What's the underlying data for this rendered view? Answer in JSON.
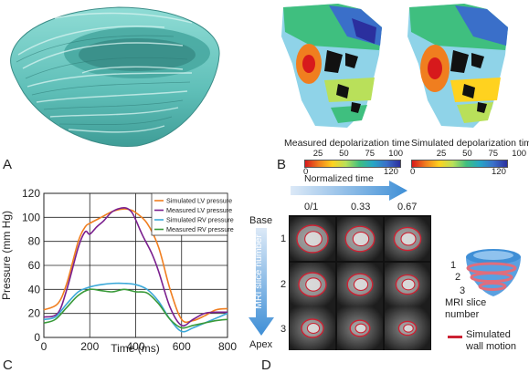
{
  "panels": {
    "a": "A",
    "b": "B",
    "c": "C",
    "d": "D"
  },
  "colors": {
    "fiber": "#5fbfb8",
    "lv_sim": "#f07e1f",
    "lv_meas": "#7a1f8e",
    "rv_sim": "#3ba8d8",
    "rv_meas": "#3a9a3a",
    "arrow": "#3f8fd6",
    "motion": "#cc2233"
  },
  "panel_b": {
    "measured_title": "Measured depolarization time",
    "simulated_title": "Simulated depolarization time",
    "ticks_top": [
      "25",
      "50",
      "75",
      "100"
    ],
    "tick_min": "0",
    "tick_max": "120",
    "colormap": [
      "#d7191c",
      "#f07e1f",
      "#ffd21f",
      "#b9e05a",
      "#3fbf7f",
      "#27a6c5",
      "#3a6fc9",
      "#2b2f9e"
    ]
  },
  "chart_data": {
    "type": "line",
    "xlabel": "Time (ms)",
    "ylabel": "Pressure (mm Hg)",
    "xlim": [
      0,
      800
    ],
    "ylim": [
      0,
      120
    ],
    "xticks": [
      "0",
      "200",
      "400",
      "600",
      "800"
    ],
    "yticks": [
      "0",
      "20",
      "40",
      "60",
      "80",
      "100",
      "120"
    ],
    "grid": true,
    "legend_position": "top-right",
    "series": [
      {
        "name": "Simulated LV pressure",
        "color": "#f07e1f",
        "x": [
          0,
          60,
          100,
          150,
          180,
          200,
          250,
          300,
          350,
          380,
          400,
          450,
          500,
          550,
          600,
          650,
          700,
          750,
          800
        ],
        "y": [
          23,
          28,
          45,
          80,
          92,
          95,
          100,
          105,
          107,
          106,
          104,
          95,
          75,
          40,
          15,
          14,
          18,
          23,
          24
        ]
      },
      {
        "name": "Measured LV pressure",
        "color": "#7a1f8e",
        "x": [
          0,
          60,
          100,
          150,
          180,
          200,
          230,
          260,
          300,
          350,
          380,
          400,
          430,
          470,
          500,
          550,
          600,
          650,
          700,
          750,
          800
        ],
        "y": [
          17,
          20,
          40,
          75,
          88,
          86,
          92,
          97,
          105,
          108,
          105,
          98,
          85,
          70,
          55,
          25,
          10,
          15,
          20,
          21,
          21
        ]
      },
      {
        "name": "Simulated RV pressure",
        "color": "#3ba8d8",
        "x": [
          0,
          50,
          100,
          150,
          200,
          250,
          300,
          350,
          400,
          450,
          500,
          550,
          600,
          650,
          700,
          750,
          800
        ],
        "y": [
          15,
          17,
          28,
          38,
          42,
          44,
          45,
          45,
          44,
          40,
          30,
          15,
          5,
          8,
          12,
          16,
          20
        ]
      },
      {
        "name": "Measured RV pressure",
        "color": "#3a9a3a",
        "x": [
          0,
          50,
          100,
          150,
          200,
          250,
          300,
          350,
          400,
          450,
          500,
          550,
          600,
          650,
          700,
          750,
          800
        ],
        "y": [
          12,
          15,
          25,
          35,
          40,
          39,
          38,
          40,
          38,
          37,
          28,
          15,
          8,
          10,
          12,
          14,
          15
        ]
      }
    ]
  },
  "panel_d": {
    "normalized_time": "Normalized time",
    "time_labels": [
      "0/1",
      "0.33",
      "0.67"
    ],
    "base": "Base",
    "apex": "Apex",
    "axis_label": "MRI slice number",
    "slice_numbers": [
      "1",
      "2",
      "3"
    ],
    "model_slice_numbers": [
      "1",
      "2",
      "3"
    ],
    "model_label_line1": "MRI slice",
    "model_label_line2": "number",
    "legend_line1": "Simulated",
    "legend_line2": "wall motion"
  }
}
